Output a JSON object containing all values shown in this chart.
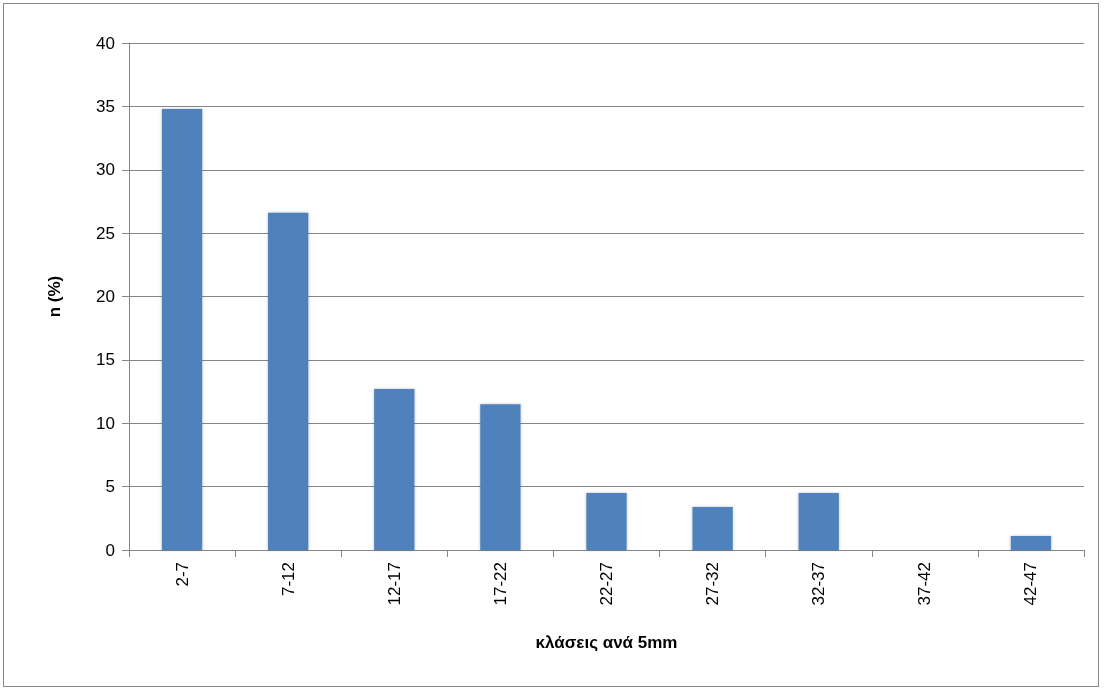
{
  "chart_data": {
    "type": "bar",
    "xlabel": "κλάσεις ανά 5mm",
    "ylabel": "n (%)",
    "categories": [
      "2-7",
      "7-12",
      "12-17",
      "17-22",
      "22-27",
      "27-32",
      "32-37",
      "37-42",
      "42-47"
    ],
    "values": [
      34.8,
      26.6,
      12.7,
      11.5,
      4.5,
      3.4,
      4.5,
      0,
      1.1
    ],
    "color": "#4f81bd",
    "ylim": [
      0,
      40
    ],
    "yticks": [
      0,
      5,
      10,
      15,
      20,
      25,
      30,
      35,
      40
    ],
    "grid": "y"
  }
}
